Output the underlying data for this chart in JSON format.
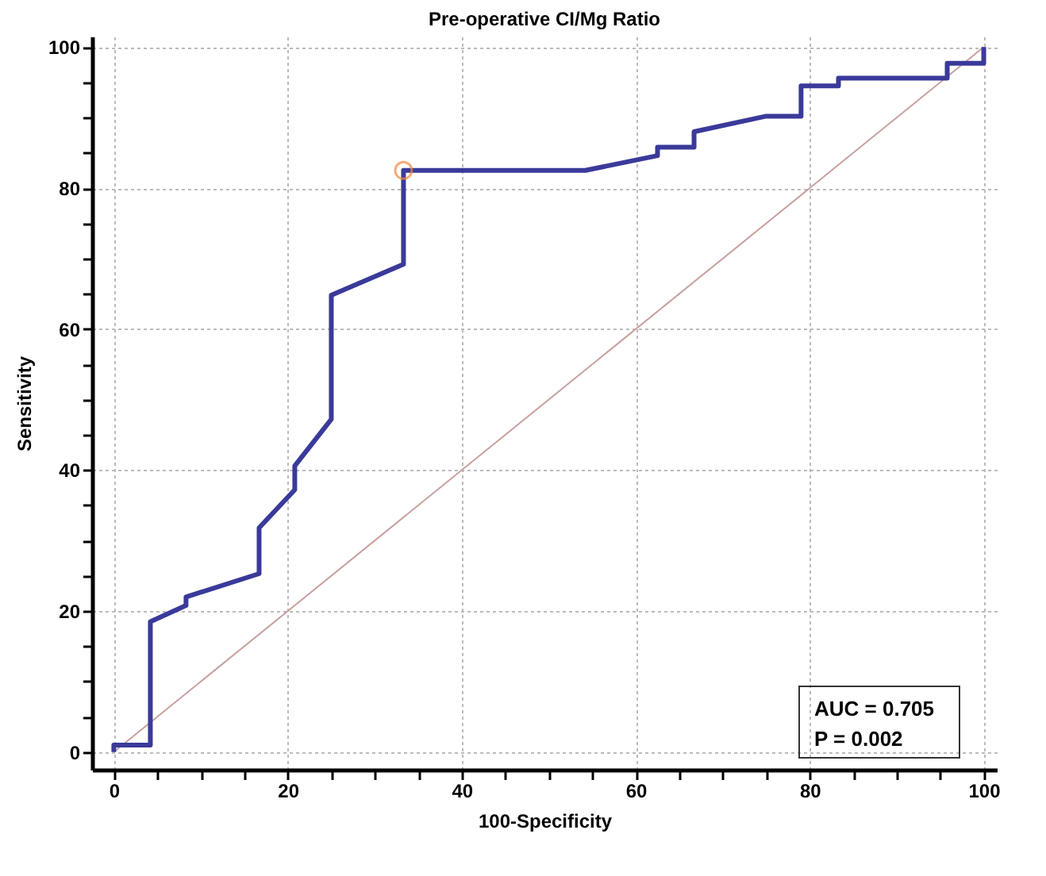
{
  "chart_data": {
    "type": "line",
    "title": "Pre-operative CI/Mg Ratio",
    "xlabel": "100-Specificity",
    "ylabel": "Sensitivity",
    "xlim": [
      -2.5,
      101.5
    ],
    "ylim": [
      -2.5,
      101.5
    ],
    "xticks": [
      0,
      {
        "value": 5,
        "label": null
      },
      {
        "value": 10,
        "label": null
      },
      {
        "value": 15,
        "label": null
      },
      20,
      {
        "value": 25,
        "label": null
      },
      {
        "value": 30,
        "label": null
      },
      {
        "value": 35,
        "label": null
      },
      40,
      {
        "value": 45,
        "label": null
      },
      {
        "value": 50,
        "label": null
      },
      {
        "value": 55,
        "label": null
      },
      60,
      {
        "value": 65,
        "label": null
      },
      {
        "value": 70,
        "label": null
      },
      {
        "value": 75,
        "label": null
      },
      80,
      {
        "value": 85,
        "label": null
      },
      {
        "value": 90,
        "label": null
      },
      {
        "value": 95,
        "label": null
      },
      100
    ],
    "yticks": [
      0,
      {
        "value": 5,
        "label": null
      },
      {
        "value": 10,
        "label": null
      },
      {
        "value": 15,
        "label": null
      },
      20,
      {
        "value": 25,
        "label": null
      },
      {
        "value": 30,
        "label": null
      },
      {
        "value": 35,
        "label": null
      },
      40,
      {
        "value": 45,
        "label": null
      },
      {
        "value": 50,
        "label": null
      },
      {
        "value": 55,
        "label": null
      },
      60,
      {
        "value": 65,
        "label": null
      },
      {
        "value": 70,
        "label": null
      },
      {
        "value": 75,
        "label": null
      },
      80,
      {
        "value": 85,
        "label": null
      },
      {
        "value": 90,
        "label": null
      },
      {
        "value": 95,
        "label": null
      },
      100
    ],
    "grid": true,
    "line_style": "solid",
    "annotations": [
      "AUC = 0.705",
      "P = 0.002"
    ],
    "series": [
      {
        "color": "#c8a0a0",
        "x": [
          0,
          100
        ],
        "values": [
          0,
          100
        ]
      },
      {
        "color": "#3a3a9a",
        "x": [
          0,
          0,
          4.2,
          4.2,
          8.3,
          8.3,
          16.7,
          16.7,
          20.8,
          20.8,
          25,
          25,
          33.3,
          33.3,
          54.2,
          62.5,
          62.5,
          66.7,
          66.7,
          75,
          79,
          79,
          83.3,
          83.3,
          95.8,
          95.8,
          100,
          100
        ],
        "values": [
          0,
          1,
          1,
          18.5,
          20.8,
          22,
          25.3,
          31.8,
          37.2,
          40.6,
          47.2,
          64.8,
          69.2,
          82.5,
          82.5,
          84.6,
          85.8,
          85.8,
          88,
          90.2,
          90.2,
          94.5,
          94.5,
          95.6,
          95.6,
          97.7,
          97.7,
          100
        ]
      },
      {
        "type": "scatter",
        "color": "#f08a40",
        "x": [
          33.3
        ],
        "values": [
          82.5
        ]
      }
    ]
  }
}
